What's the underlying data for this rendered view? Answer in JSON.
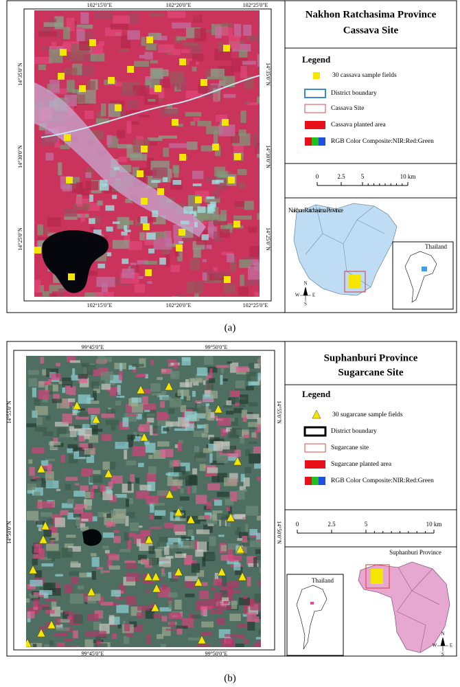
{
  "panels": [
    {
      "title_line1": "Nakhon Ratchasima Province",
      "title_line2": "Cassava Site",
      "legend_title": "Legend",
      "legend_items": [
        "30 cassava sample fields",
        "District boundary",
        "Cassava Site",
        "Cassava planted area",
        "RGB Color Composite:NIR:Red:Green"
      ],
      "scale_labels": [
        "0",
        "2.5",
        "5",
        "10 km"
      ],
      "top_coords": [
        "102°15'0\"E",
        "102°20'0\"E",
        "102°25'0\"E"
      ],
      "bottom_coords": [
        "102°15'0\"E",
        "102°20'0\"E",
        "102°25'0\"E"
      ],
      "left_coords": [
        "14°35'0\"N",
        "14°30'0\"N",
        "14°25'0\"N"
      ],
      "right_coords": [
        "14°35'0\"N",
        "14°30'0\"N",
        "14°25'0\"N"
      ],
      "inset_label": "Nakhon Ratchasima Province",
      "country_label": "Thailand",
      "compass": [
        "N",
        "W",
        "E",
        "S"
      ],
      "caption": "(a)"
    },
    {
      "title_line1": "Suphanburi Province",
      "title_line2": "Sugarcane Site",
      "legend_title": "Legend",
      "legend_items": [
        "30 sugarcane sample fields",
        "District boundary",
        "Sugarcane site",
        "Sugarcane planted area",
        "RGB Color Composite:NIR:Red:Green"
      ],
      "scale_labels": [
        "0",
        "2.5",
        "5",
        "10 km"
      ],
      "top_coords": [
        "99°45'0\"E",
        "99°50'0\"E"
      ],
      "bottom_coords": [
        "99°45'0\"E",
        "99°50'0\"E"
      ],
      "left_coords": [
        "14°55'0\"N",
        "14°50'0\"N"
      ],
      "right_coords": [
        "14°55'0\"N",
        "14°50'0\"N"
      ],
      "inset_label": "Suphanburi Province",
      "country_label": "Thailand",
      "compass": [
        "N",
        "W",
        "E",
        "S"
      ],
      "caption": "(b)"
    }
  ]
}
